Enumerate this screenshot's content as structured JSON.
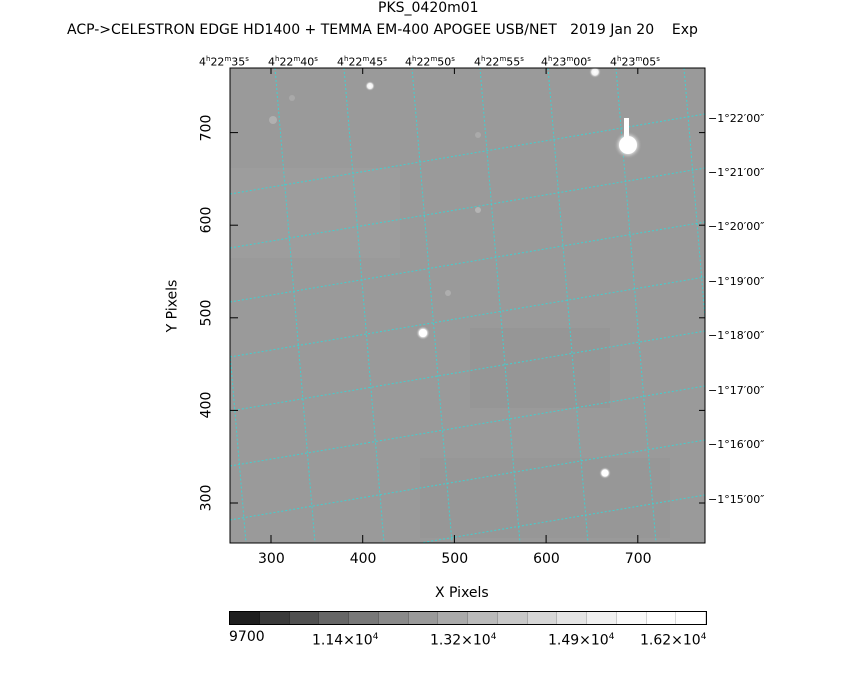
{
  "title": "PKS_0420m01",
  "subtitle": "ACP->CELESTRON EDGE HD1400 + TEMMA EM-400 APOGEE USB/NET   2019 Jan 20    Exp",
  "x_axis": {
    "label": "X Pixels",
    "ticks": [
      "300",
      "400",
      "500",
      "600",
      "700"
    ]
  },
  "y_axis": {
    "label": "Y Pixels",
    "ticks": [
      "300",
      "400",
      "500",
      "600",
      "700"
    ]
  },
  "ra_ticks": [
    {
      "h": "4",
      "m": "22",
      "s": "35"
    },
    {
      "h": "4",
      "m": "22",
      "s": "40"
    },
    {
      "h": "4",
      "m": "22",
      "s": "45"
    },
    {
      "h": "4",
      "m": "22",
      "s": "50"
    },
    {
      "h": "4",
      "m": "22",
      "s": "55"
    },
    {
      "h": "4",
      "m": "23",
      "s": "00"
    },
    {
      "h": "4",
      "m": "23",
      "s": "05"
    }
  ],
  "dec_ticks": [
    "−1°22′00″",
    "−1°21′00″",
    "−1°20′00″",
    "−1°19′00″",
    "−1°18′00″",
    "−1°17′00″",
    "−1°16′00″",
    "−1°15′00″"
  ],
  "colorbar": {
    "labels": [
      {
        "mant": "9700",
        "exp": ""
      },
      {
        "mant": "1.14×10",
        "exp": "4"
      },
      {
        "mant": "1.32×10",
        "exp": "4"
      },
      {
        "mant": "1.49×10",
        "exp": "4"
      },
      {
        "mant": "1.62×10",
        "exp": "4"
      }
    ],
    "colors": [
      "#1e1e1e",
      "#3a3a3a",
      "#505050",
      "#666666",
      "#787878",
      "#8a8a8a",
      "#9a9a9a",
      "#aaaaaa",
      "#bababa",
      "#c8c8c8",
      "#d6d6d6",
      "#e4e4e4",
      "#f0f0f0",
      "#fafafa",
      "#ffffff",
      "#ffffff"
    ]
  },
  "colors": {
    "grid": "#40d0d0",
    "background": "#9a9a9a"
  }
}
